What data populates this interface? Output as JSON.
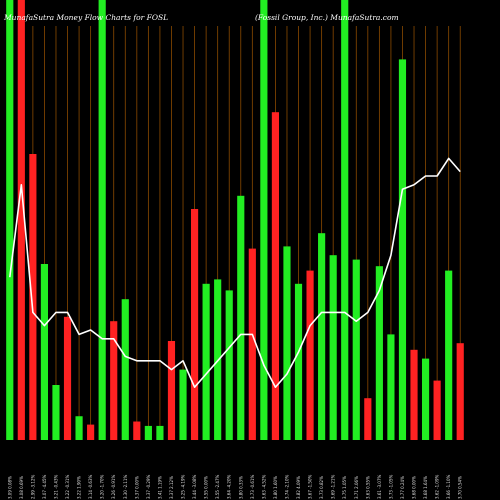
{
  "chart_data": {
    "type": "bar",
    "title_left": "MunafaSutra  Money Flow  Charts for FOSL",
    "title_right": "(Fossil Group,  Inc.) MunafaSutra.com",
    "colors": {
      "background": "#000000",
      "up": "#22ee22",
      "down": "#ff2222",
      "line": "#ffffff",
      "grid": "#8a4a00"
    },
    "bar_ylim": [
      0,
      100
    ],
    "bars": [
      {
        "value": 100,
        "color": "up"
      },
      {
        "value": 100,
        "color": "down"
      },
      {
        "value": 65,
        "color": "down"
      },
      {
        "value": 40,
        "color": "up"
      },
      {
        "value": 12.5,
        "color": "up"
      },
      {
        "value": 28,
        "color": "down"
      },
      {
        "value": 5.4,
        "color": "up"
      },
      {
        "value": 3.5,
        "color": "down"
      },
      {
        "value": 100,
        "color": "up"
      },
      {
        "value": 27,
        "color": "down"
      },
      {
        "value": 32,
        "color": "up"
      },
      {
        "value": 4.2,
        "color": "down"
      },
      {
        "value": 3.2,
        "color": "up"
      },
      {
        "value": 3.2,
        "color": "up"
      },
      {
        "value": 22.5,
        "color": "down"
      },
      {
        "value": 16,
        "color": "up"
      },
      {
        "value": 52.5,
        "color": "down"
      },
      {
        "value": 35.5,
        "color": "up"
      },
      {
        "value": 36.5,
        "color": "up"
      },
      {
        "value": 34,
        "color": "up"
      },
      {
        "value": 55.5,
        "color": "up"
      },
      {
        "value": 43.5,
        "color": "down"
      },
      {
        "value": 100,
        "color": "up"
      },
      {
        "value": 74.5,
        "color": "down"
      },
      {
        "value": 44,
        "color": "up"
      },
      {
        "value": 35.5,
        "color": "up"
      },
      {
        "value": 38.5,
        "color": "down"
      },
      {
        "value": 47,
        "color": "up"
      },
      {
        "value": 42,
        "color": "up"
      },
      {
        "value": 100,
        "color": "up"
      },
      {
        "value": 41,
        "color": "up"
      },
      {
        "value": 9.5,
        "color": "down"
      },
      {
        "value": 39.5,
        "color": "up"
      },
      {
        "value": 24,
        "color": "up"
      },
      {
        "value": 86.5,
        "color": "up"
      },
      {
        "value": 20.5,
        "color": "down"
      },
      {
        "value": 18.5,
        "color": "up"
      },
      {
        "value": 13.5,
        "color": "down"
      },
      {
        "value": 38.5,
        "color": "up"
      },
      {
        "value": 22,
        "color": "down"
      }
    ],
    "line_ylim": [
      0,
      100
    ],
    "line": [
      37,
      58,
      29,
      26,
      29,
      29,
      24,
      25,
      23,
      23,
      19,
      18,
      18,
      18,
      16,
      18,
      12,
      15,
      18,
      21,
      24,
      24,
      17,
      12,
      15,
      20,
      26,
      29,
      29,
      29,
      27,
      29,
      34,
      42,
      57,
      58,
      60,
      60,
      64,
      61
    ],
    "x_tick_labels": [
      "3.09 0.08%",
      "3.08 0.69%",
      "2.99 -3.12%",
      "3.07 -4.45%",
      "3.21 -0.43%",
      "3.22 -0.31%",
      "3.22 1.90%",
      "3.14 -0.63%",
      "3.20 -1.70%",
      "3.26 -0.91%",
      "3.30 -2.11%",
      "3.37 0.00%",
      "3.37 -0.29%",
      "3.41 1.19%",
      "3.37 2.12%",
      "3.25 -4.19%",
      "3.44 -3.08%",
      "3.55 0.00%",
      "3.55 -2.47%",
      "3.64 -4.20%",
      "3.80 0.33%",
      "3.73 -0.61%",
      "3.63 -4.52%",
      "3.80 1.60%",
      "3.74 -2.10%",
      "3.82 4.09%",
      "3.67 -1.50%",
      "3.73 0.82%",
      "3.69 -1.21%",
      "3.75 1.05%",
      "3.71 2.06%",
      "3.63 0.55%",
      "3.61 -3.07%",
      "3.73 -1.05%",
      "3.77 0.24%",
      "3.68 0.00%",
      "3.68 1.64%",
      "3.62 -1.09%",
      "3.66 -1.10%",
      "3.70 0.54%"
    ]
  }
}
